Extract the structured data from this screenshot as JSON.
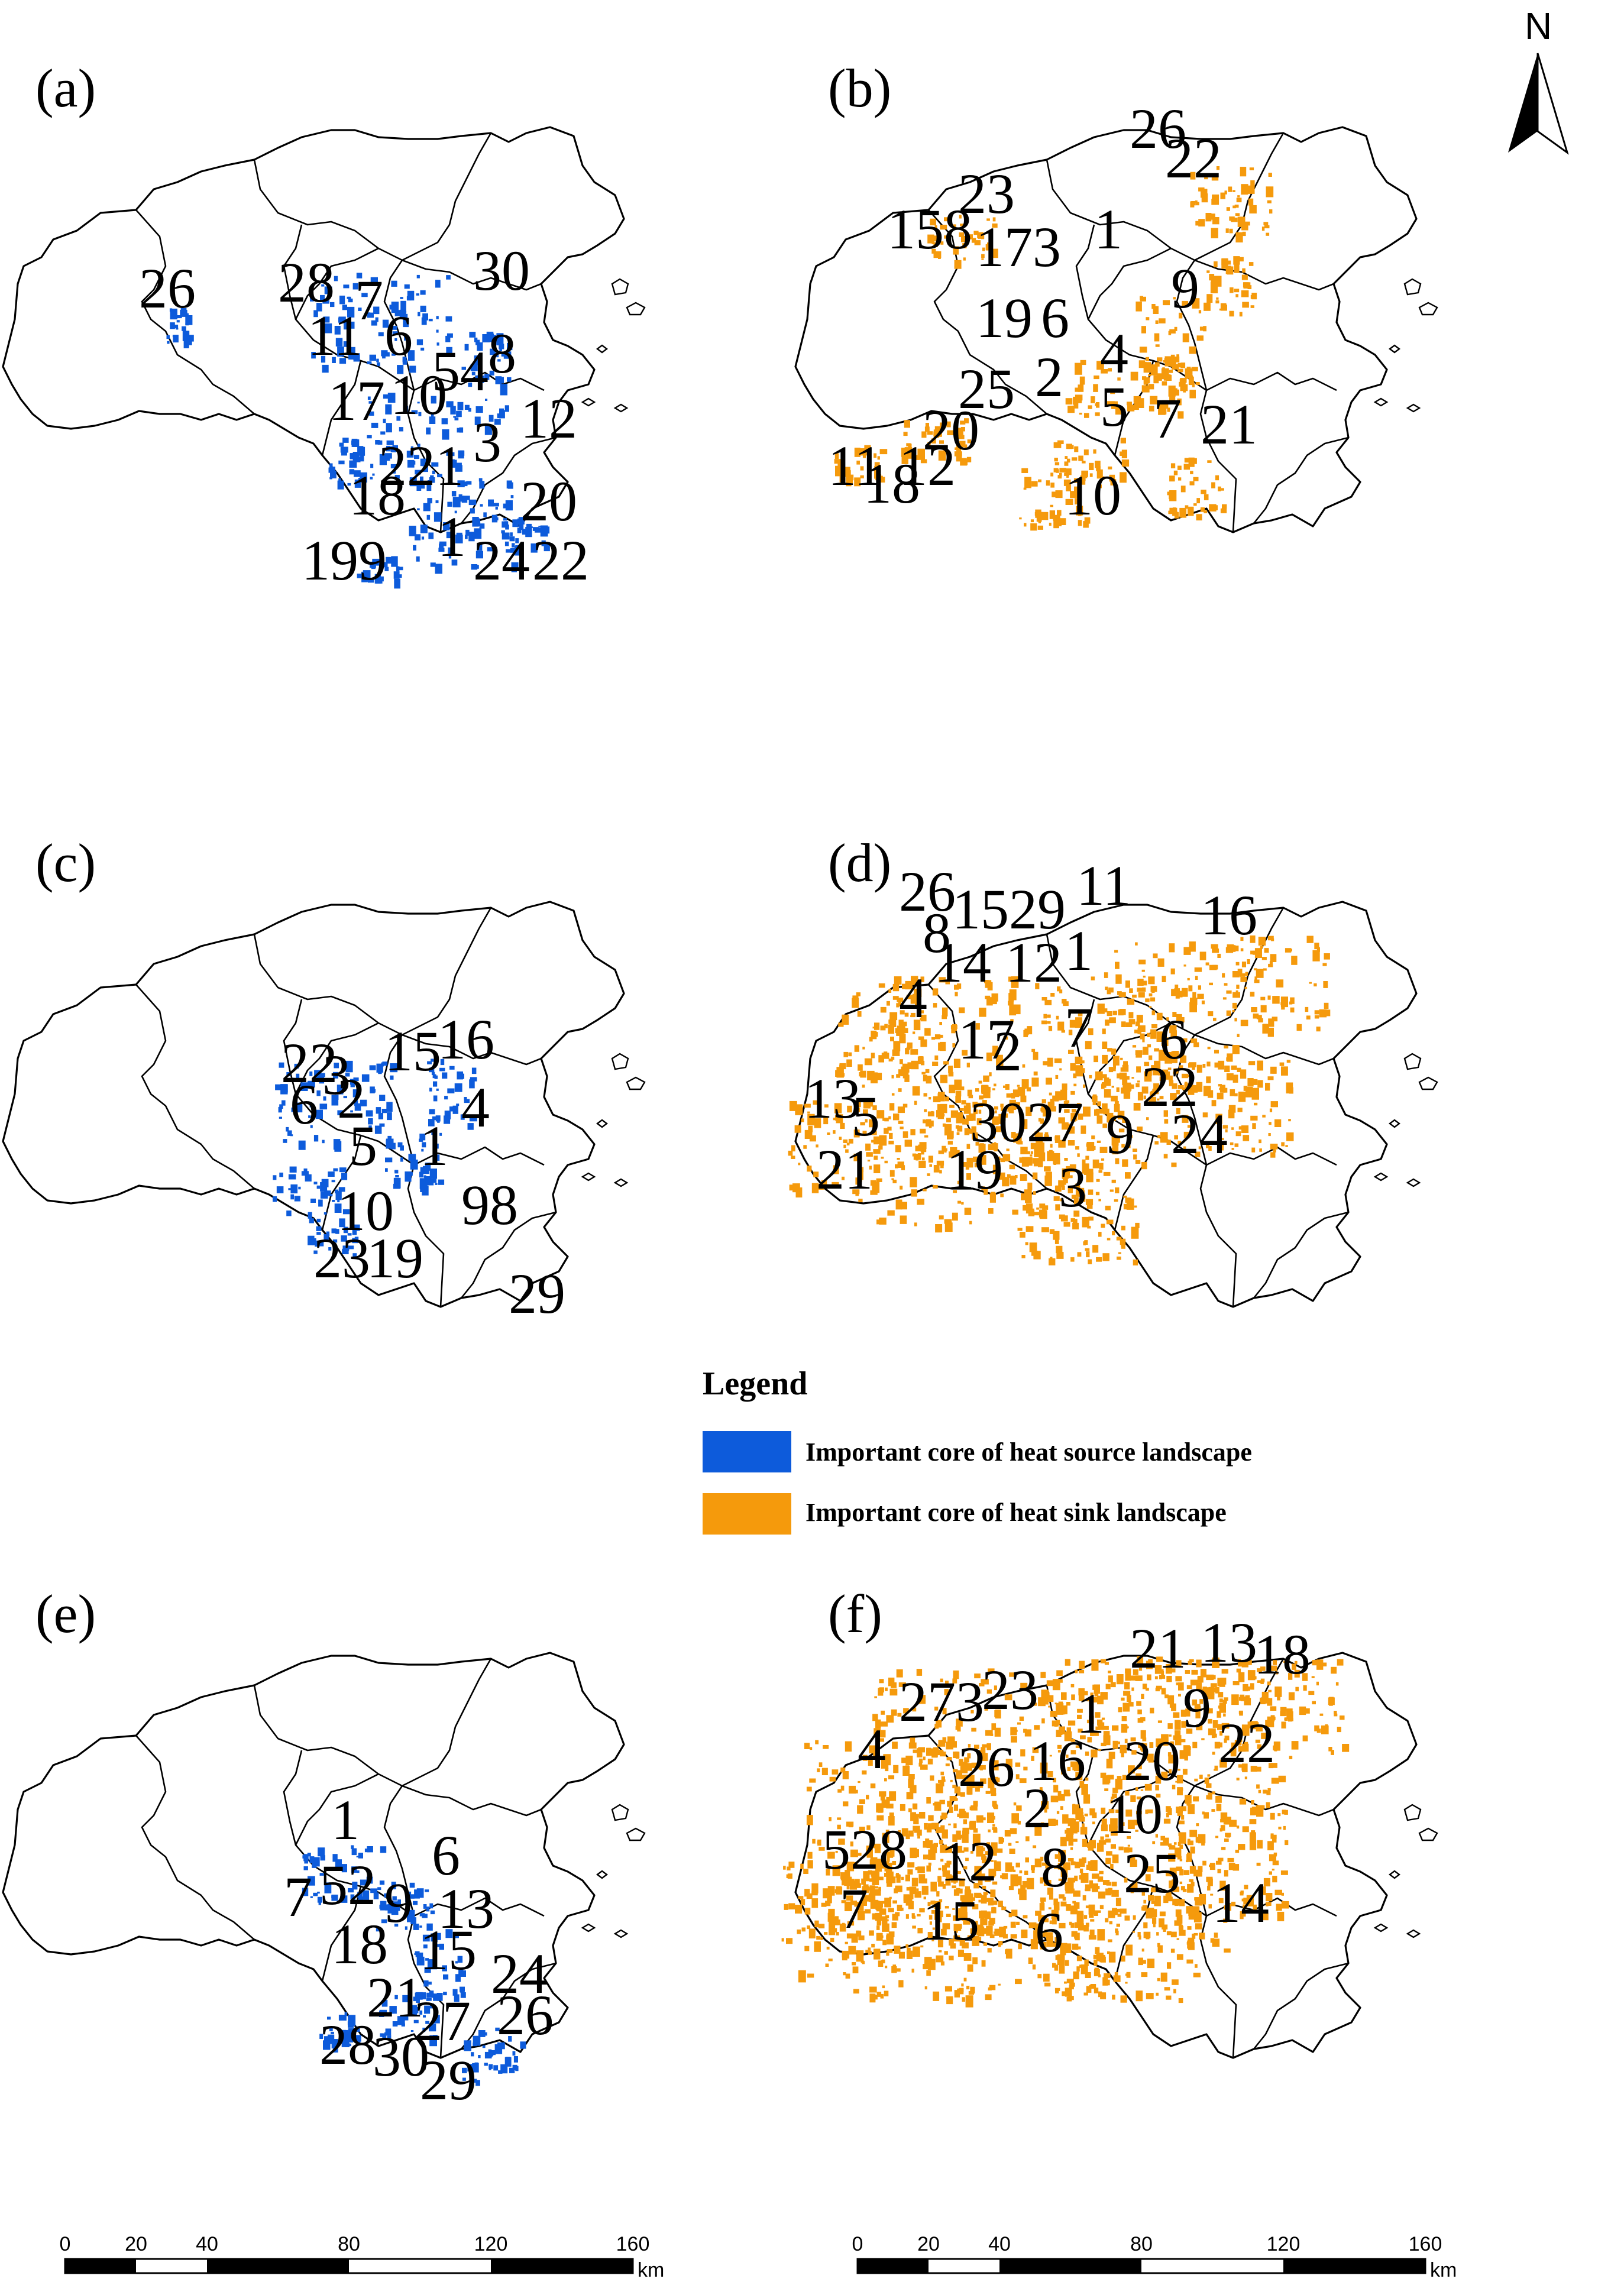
{
  "colors": {
    "heat_source": "#0d5bdb",
    "heat_sink": "#f59a0c",
    "outline": "#000000"
  },
  "north_arrow": {
    "label": "N"
  },
  "legend": {
    "title": "Legend",
    "items": [
      {
        "label": "Important core of heat source landscape",
        "color": "#0d5bdb"
      },
      {
        "label": "Important core of heat sink landscape",
        "color": "#f59a0c"
      }
    ]
  },
  "scale_bar": {
    "ticks": [
      "0",
      "20",
      "40",
      "80",
      "120",
      "160"
    ],
    "unit": "km"
  },
  "panels": [
    {
      "label": "(a)",
      "type": "heat_source",
      "patch_numbers": [
        "26",
        "28",
        "7",
        "11",
        "6",
        "30",
        "8",
        "54",
        "10",
        "17",
        "12",
        "3",
        "221",
        "18",
        "20",
        "1",
        "199",
        "24",
        "22"
      ]
    },
    {
      "label": "(b)",
      "type": "heat_sink",
      "patch_numbers": [
        "26",
        "22",
        "23",
        "158",
        "1",
        "173",
        "9",
        "19",
        "6",
        "4",
        "2",
        "25",
        "5",
        "7",
        "21",
        "20",
        "11",
        "12",
        "18",
        "10"
      ]
    },
    {
      "label": "(c)",
      "type": "heat_source",
      "patch_numbers": [
        "22",
        "3",
        "6",
        "2",
        "15",
        "16",
        "4",
        "1",
        "5",
        "10",
        "98",
        "23",
        "19",
        "29"
      ]
    },
    {
      "label": "(d)",
      "type": "heat_sink",
      "patch_numbers": [
        "26",
        "1529",
        "11",
        "16",
        "8",
        "14",
        "12",
        "1",
        "4",
        "17",
        "7",
        "6",
        "2",
        "22",
        "13",
        "5",
        "3027",
        "9",
        "24",
        "21",
        "19",
        "3"
      ]
    },
    {
      "label": "(e)",
      "type": "heat_source",
      "patch_numbers": [
        "1",
        "6",
        "52",
        "7",
        "9",
        "13",
        "18",
        "15",
        "24",
        "21",
        "27",
        "26",
        "28",
        "30",
        "29"
      ]
    },
    {
      "label": "(f)",
      "type": "heat_sink",
      "patch_numbers": [
        "21",
        "13",
        "18",
        "273",
        "23",
        "1",
        "9",
        "4",
        "22",
        "26",
        "16",
        "20",
        "2",
        "10",
        "528",
        "12",
        "8",
        "25",
        "14",
        "7",
        "15",
        "6"
      ]
    }
  ]
}
